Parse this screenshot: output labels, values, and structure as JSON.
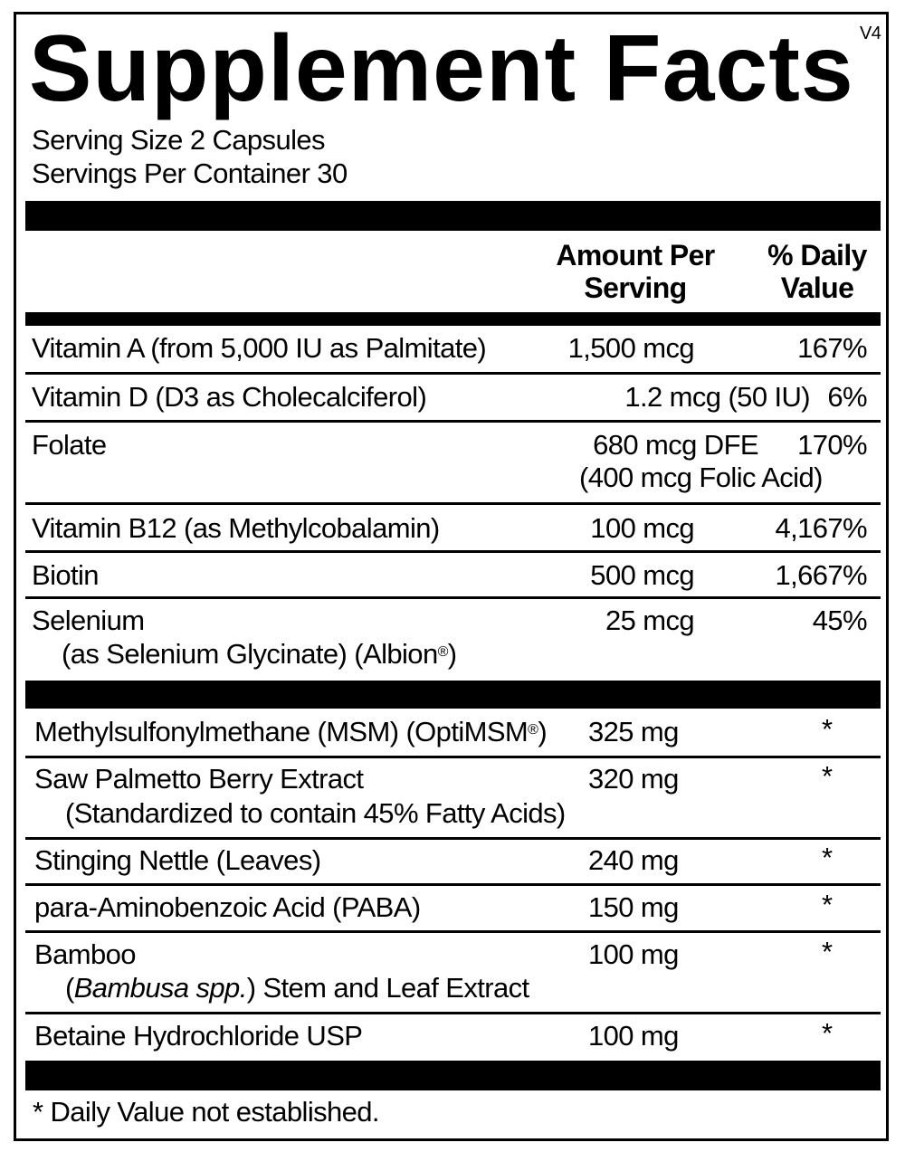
{
  "title": "Supplement Facts",
  "version": "V4",
  "serving_size": "Serving Size 2 Capsules",
  "servings_per_container": "Servings Per Container 30",
  "header": {
    "amount_line1": "Amount Per",
    "amount_line2": "Serving",
    "dv_line1": "% Daily",
    "dv_line2": "Value"
  },
  "vitamins": [
    {
      "name": "Vitamin A (from 5,000 IU as Palmitate)",
      "amount": "1,500 mcg",
      "dv": "167%"
    },
    {
      "name": "Vitamin D (D3 as Cholecalciferol)",
      "amount": "1.2 mcg (50 IU)",
      "dv": "6%"
    },
    {
      "name": "Folate",
      "amount": "680 mcg DFE",
      "amount_sub": "(400 mcg Folic Acid)",
      "dv": "170%"
    },
    {
      "name": "Vitamin B12 (as Methylcobalamin)",
      "amount": "100 mcg",
      "dv": "4,167%"
    },
    {
      "name": "Biotin",
      "amount": "500 mcg",
      "dv": "1,667%"
    },
    {
      "name": "Selenium",
      "sub": "(as Selenium Glycinate) (Albion",
      "sub_mark": "®",
      "sub_end": ")",
      "amount": "25 mcg",
      "dv": "45%"
    }
  ],
  "others": [
    {
      "name": "Methylsulfonylmethane (MSM) (OptiMSM",
      "mark": "®",
      "name_end": ")",
      "amount": "325 mg",
      "dv": "*"
    },
    {
      "name": "Saw Palmetto Berry Extract",
      "sub": "(Standardized to contain 45% Fatty Acids)",
      "amount": "320 mg",
      "dv": "*"
    },
    {
      "name": "Stinging Nettle (Leaves)",
      "amount": "240 mg",
      "dv": "*"
    },
    {
      "name": "para-Aminobenzoic Acid (PABA)",
      "amount": "150 mg",
      "dv": "*"
    },
    {
      "name": "Bamboo",
      "sub_open": "(",
      "sub_italic": "Bambusa spp.",
      "sub_rest": ") Stem and Leaf Extract",
      "amount": "100 mg",
      "dv": "*"
    },
    {
      "name": "Betaine Hydrochloride USP",
      "amount": "100 mg",
      "dv": "*"
    }
  ],
  "footnote": "* Daily Value not established."
}
